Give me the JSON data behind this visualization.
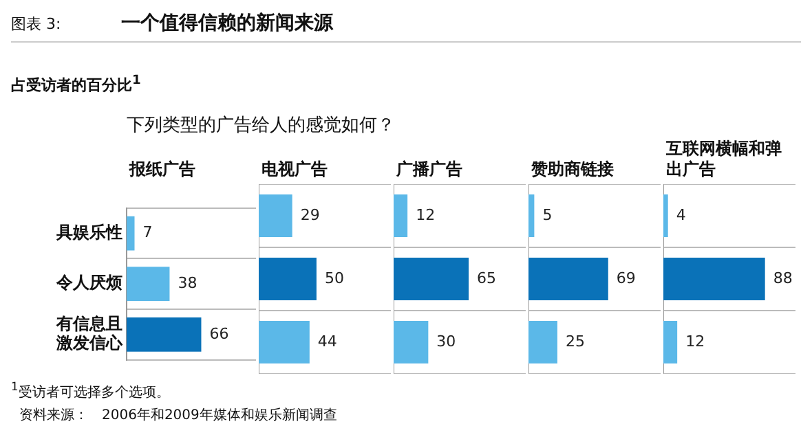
{
  "chart_data": [
    {
      "type": "bar",
      "orientation": "horizontal",
      "title": "报纸广告",
      "subtitle": "下列类型的广告给人的感觉如何？",
      "ylabel": "占受访者的百分比$^{1}$",
      "annotations": [
        "图表 3:",
        "一个值得信赖的新闻来源",
        "$^{1}$受访者可选择多个选项。",
        "资料来源：　2006年和2009年媒体和娱乐新闻调查"
      ],
      "categories": [
        "具娱乐性",
        "令人厌烦",
        "有信息且激发信心"
      ],
      "values": [
        7,
        38,
        66
      ],
      "colors": [
        "#5bb8e8",
        "#5bb8e8",
        "#0a72b8"
      ],
      "data_labels": true,
      "grid": "y",
      "tick_labels": "y"
    },
    {
      "type": "bar",
      "orientation": "horizontal",
      "title": "电视广告",
      "categories": [
        "具娱乐性",
        "令人厌烦",
        "有信息且激发信心"
      ],
      "values": [
        29,
        50,
        44
      ],
      "colors": [
        "#5bb8e8",
        "#0a72b8",
        "#5bb8e8"
      ],
      "data_labels": true,
      "grid": "y",
      "tick_labels": false
    },
    {
      "type": "bar",
      "orientation": "horizontal",
      "title": "广播广告",
      "categories": [
        "具娱乐性",
        "令人厌烦",
        "有信息且激发信心"
      ],
      "values": [
        12,
        65,
        30
      ],
      "colors": [
        "#5bb8e8",
        "#0a72b8",
        "#5bb8e8"
      ],
      "data_labels": true,
      "grid": "y",
      "tick_labels": false
    },
    {
      "type": "bar",
      "orientation": "horizontal",
      "title": "赞助商链接",
      "categories": [
        "具娱乐性",
        "令人厌烦",
        "有信息且激发信心"
      ],
      "values": [
        5,
        69,
        25
      ],
      "colors": [
        "#5bb8e8",
        "#0a72b8",
        "#5bb8e8"
      ],
      "data_labels": true,
      "grid": "y",
      "tick_labels": false
    },
    {
      "type": "bar",
      "orientation": "horizontal",
      "title": "互联网横幅和弹出广告",
      "categories": [
        "具娱乐性",
        "令人厌烦",
        "有信息且激发信心"
      ],
      "values": [
        4,
        88,
        12
      ],
      "colors": [
        "#5bb8e8",
        "#0a72b8",
        "#5bb8e8"
      ],
      "data_labels": true,
      "grid": "y",
      "tick_labels": false
    }
  ]
}
